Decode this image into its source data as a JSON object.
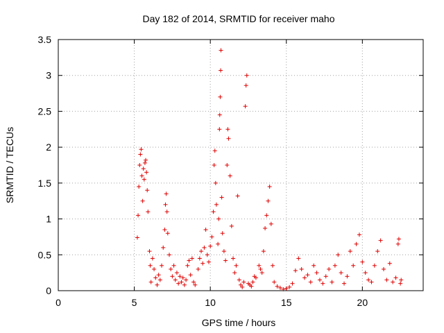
{
  "chart_data": {
    "type": "scatter",
    "title": "Day 182 of 2014, SRMTID for receiver maho",
    "xlabel": "GPS time / hours",
    "ylabel": "SRMTID / TECUs",
    "xlim": [
      0,
      24
    ],
    "ylim": [
      0,
      3.5
    ],
    "xticks": [
      0,
      5,
      10,
      15,
      20
    ],
    "yticks": [
      0,
      0.5,
      1,
      1.5,
      2,
      2.5,
      3,
      3.5
    ],
    "xtick_labels": [
      "0",
      "5",
      "10",
      "15",
      "20"
    ],
    "ytick_labels": [
      "0",
      "0.5",
      "1",
      "1.5",
      "2",
      "2.5",
      "3",
      "3.5"
    ],
    "grid": true,
    "marker": "+",
    "color": "#e00000",
    "series": [
      {
        "name": "SRMTID",
        "points": [
          [
            5.2,
            0.74
          ],
          [
            5.25,
            1.05
          ],
          [
            5.3,
            1.45
          ],
          [
            5.35,
            1.75
          ],
          [
            5.4,
            1.9
          ],
          [
            5.45,
            1.97
          ],
          [
            5.5,
            1.6
          ],
          [
            5.55,
            1.25
          ],
          [
            5.6,
            1.7
          ],
          [
            5.65,
            1.55
          ],
          [
            5.7,
            1.78
          ],
          [
            5.75,
            1.82
          ],
          [
            5.8,
            1.65
          ],
          [
            5.85,
            1.4
          ],
          [
            5.9,
            1.1
          ],
          [
            6.0,
            0.55
          ],
          [
            6.05,
            0.35
          ],
          [
            6.1,
            0.12
          ],
          [
            6.2,
            0.45
          ],
          [
            6.3,
            0.3
          ],
          [
            6.4,
            0.18
          ],
          [
            6.5,
            0.08
          ],
          [
            6.6,
            0.22
          ],
          [
            6.7,
            0.15
          ],
          [
            6.8,
            0.35
          ],
          [
            6.9,
            0.6
          ],
          [
            7.0,
            0.85
          ],
          [
            7.05,
            1.2
          ],
          [
            7.1,
            1.35
          ],
          [
            7.15,
            1.1
          ],
          [
            7.2,
            0.8
          ],
          [
            7.3,
            0.5
          ],
          [
            7.4,
            0.3
          ],
          [
            7.5,
            0.2
          ],
          [
            7.6,
            0.35
          ],
          [
            7.7,
            0.15
          ],
          [
            7.8,
            0.25
          ],
          [
            7.9,
            0.1
          ],
          [
            8.0,
            0.2
          ],
          [
            8.1,
            0.12
          ],
          [
            8.2,
            0.18
          ],
          [
            8.3,
            0.08
          ],
          [
            8.4,
            0.15
          ],
          [
            8.5,
            0.35
          ],
          [
            8.6,
            0.42
          ],
          [
            8.7,
            0.22
          ],
          [
            8.8,
            0.45
          ],
          [
            8.9,
            0.12
          ],
          [
            9.0,
            0.08
          ],
          [
            9.2,
            0.3
          ],
          [
            9.3,
            0.45
          ],
          [
            9.4,
            0.55
          ],
          [
            9.5,
            0.38
          ],
          [
            9.6,
            0.6
          ],
          [
            9.7,
            0.85
          ],
          [
            9.8,
            0.5
          ],
          [
            9.9,
            0.4
          ],
          [
            10.0,
            0.62
          ],
          [
            10.1,
            0.75
          ],
          [
            10.2,
            1.1
          ],
          [
            10.25,
            1.75
          ],
          [
            10.3,
            1.95
          ],
          [
            10.35,
            1.5
          ],
          [
            10.4,
            1.2
          ],
          [
            10.5,
            0.65
          ],
          [
            10.55,
            1.0
          ],
          [
            10.6,
            2.25
          ],
          [
            10.62,
            2.45
          ],
          [
            10.65,
            2.7
          ],
          [
            10.68,
            3.07
          ],
          [
            10.7,
            3.35
          ],
          [
            10.75,
            1.3
          ],
          [
            10.8,
            0.8
          ],
          [
            10.9,
            0.55
          ],
          [
            11.0,
            0.42
          ],
          [
            11.1,
            1.75
          ],
          [
            11.15,
            2.25
          ],
          [
            11.2,
            2.12
          ],
          [
            11.3,
            1.6
          ],
          [
            11.4,
            0.9
          ],
          [
            11.5,
            0.45
          ],
          [
            11.6,
            0.25
          ],
          [
            11.7,
            0.35
          ],
          [
            11.8,
            1.32
          ],
          [
            11.9,
            0.15
          ],
          [
            12.0,
            0.08
          ],
          [
            12.1,
            0.05
          ],
          [
            12.2,
            0.12
          ],
          [
            12.3,
            2.57
          ],
          [
            12.35,
            2.86
          ],
          [
            12.4,
            3.0
          ],
          [
            12.5,
            0.1
          ],
          [
            12.6,
            0.08
          ],
          [
            12.7,
            0.06
          ],
          [
            12.8,
            0.12
          ],
          [
            12.9,
            0.2
          ],
          [
            13.0,
            0.18
          ],
          [
            13.2,
            0.35
          ],
          [
            13.3,
            0.3
          ],
          [
            13.4,
            0.25
          ],
          [
            13.5,
            0.55
          ],
          [
            13.6,
            0.87
          ],
          [
            13.7,
            1.05
          ],
          [
            13.8,
            1.25
          ],
          [
            13.9,
            1.45
          ],
          [
            14.0,
            0.93
          ],
          [
            14.1,
            0.35
          ],
          [
            14.2,
            0.12
          ],
          [
            14.4,
            0.06
          ],
          [
            14.6,
            0.04
          ],
          [
            14.8,
            0.02
          ],
          [
            15.0,
            0.03
          ],
          [
            15.2,
            0.05
          ],
          [
            15.4,
            0.1
          ],
          [
            15.6,
            0.28
          ],
          [
            15.8,
            0.45
          ],
          [
            16.0,
            0.3
          ],
          [
            16.2,
            0.18
          ],
          [
            16.4,
            0.22
          ],
          [
            16.6,
            0.12
          ],
          [
            16.8,
            0.35
          ],
          [
            17.0,
            0.25
          ],
          [
            17.2,
            0.15
          ],
          [
            17.4,
            0.1
          ],
          [
            17.6,
            0.2
          ],
          [
            17.8,
            0.3
          ],
          [
            18.0,
            0.12
          ],
          [
            18.2,
            0.35
          ],
          [
            18.4,
            0.5
          ],
          [
            18.6,
            0.25
          ],
          [
            18.8,
            0.1
          ],
          [
            19.0,
            0.2
          ],
          [
            19.2,
            0.55
          ],
          [
            19.4,
            0.35
          ],
          [
            19.6,
            0.65
          ],
          [
            19.8,
            0.78
          ],
          [
            20.0,
            0.4
          ],
          [
            20.2,
            0.25
          ],
          [
            20.4,
            0.15
          ],
          [
            20.6,
            0.12
          ],
          [
            20.8,
            0.35
          ],
          [
            21.0,
            0.55
          ],
          [
            21.2,
            0.7
          ],
          [
            21.4,
            0.3
          ],
          [
            21.6,
            0.15
          ],
          [
            21.8,
            0.38
          ],
          [
            22.0,
            0.12
          ],
          [
            22.2,
            0.18
          ],
          [
            22.35,
            0.65
          ],
          [
            22.4,
            0.72
          ],
          [
            22.5,
            0.1
          ],
          [
            22.55,
            0.15
          ]
        ]
      }
    ]
  }
}
